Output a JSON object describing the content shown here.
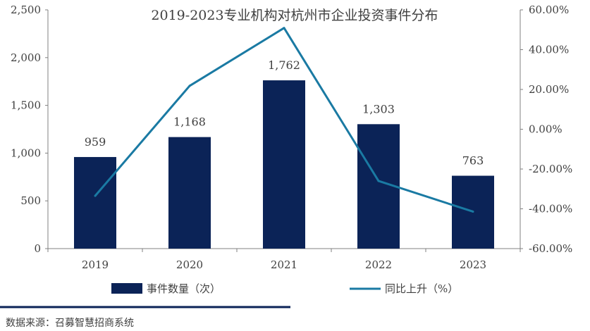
{
  "chart_data": {
    "type": "bar+line",
    "title": "2019-2023专业机构对杭州市企业投资事件分布",
    "categories": [
      "2019",
      "2020",
      "2021",
      "2022",
      "2023"
    ],
    "series": [
      {
        "name": "事件数量（次）",
        "type": "bar",
        "axis": "left",
        "color": "#0b2357",
        "values": [
          959,
          1168,
          1762,
          1303,
          763
        ],
        "data_labels": [
          "959",
          "1,168",
          "1,762",
          "1,303",
          "763"
        ]
      },
      {
        "name": "同比上升（%）",
        "type": "line",
        "axis": "right",
        "color": "#1a7aa3",
        "values": [
          -33.5,
          21.8,
          50.9,
          -26.0,
          -41.4
        ]
      }
    ],
    "y_left": {
      "min": 0,
      "max": 2500,
      "ticks": [
        0,
        500,
        1000,
        1500,
        2000,
        2500
      ],
      "tick_labels": [
        "0",
        "500",
        "1,000",
        "1,500",
        "2,000",
        "2,500"
      ]
    },
    "y_right": {
      "min": -60,
      "max": 60,
      "ticks": [
        -60,
        -40,
        -20,
        0,
        20,
        40,
        60
      ],
      "tick_labels": [
        "-60.00%",
        "-40.00%",
        "-20.00%",
        "0.00%",
        "20.00%",
        "40.00%",
        "60.00%"
      ]
    },
    "grid": false,
    "legend_position": "bottom"
  },
  "footer": {
    "source": "数据来源：召募智慧招商系统",
    "rule_color": "#0b2357"
  }
}
